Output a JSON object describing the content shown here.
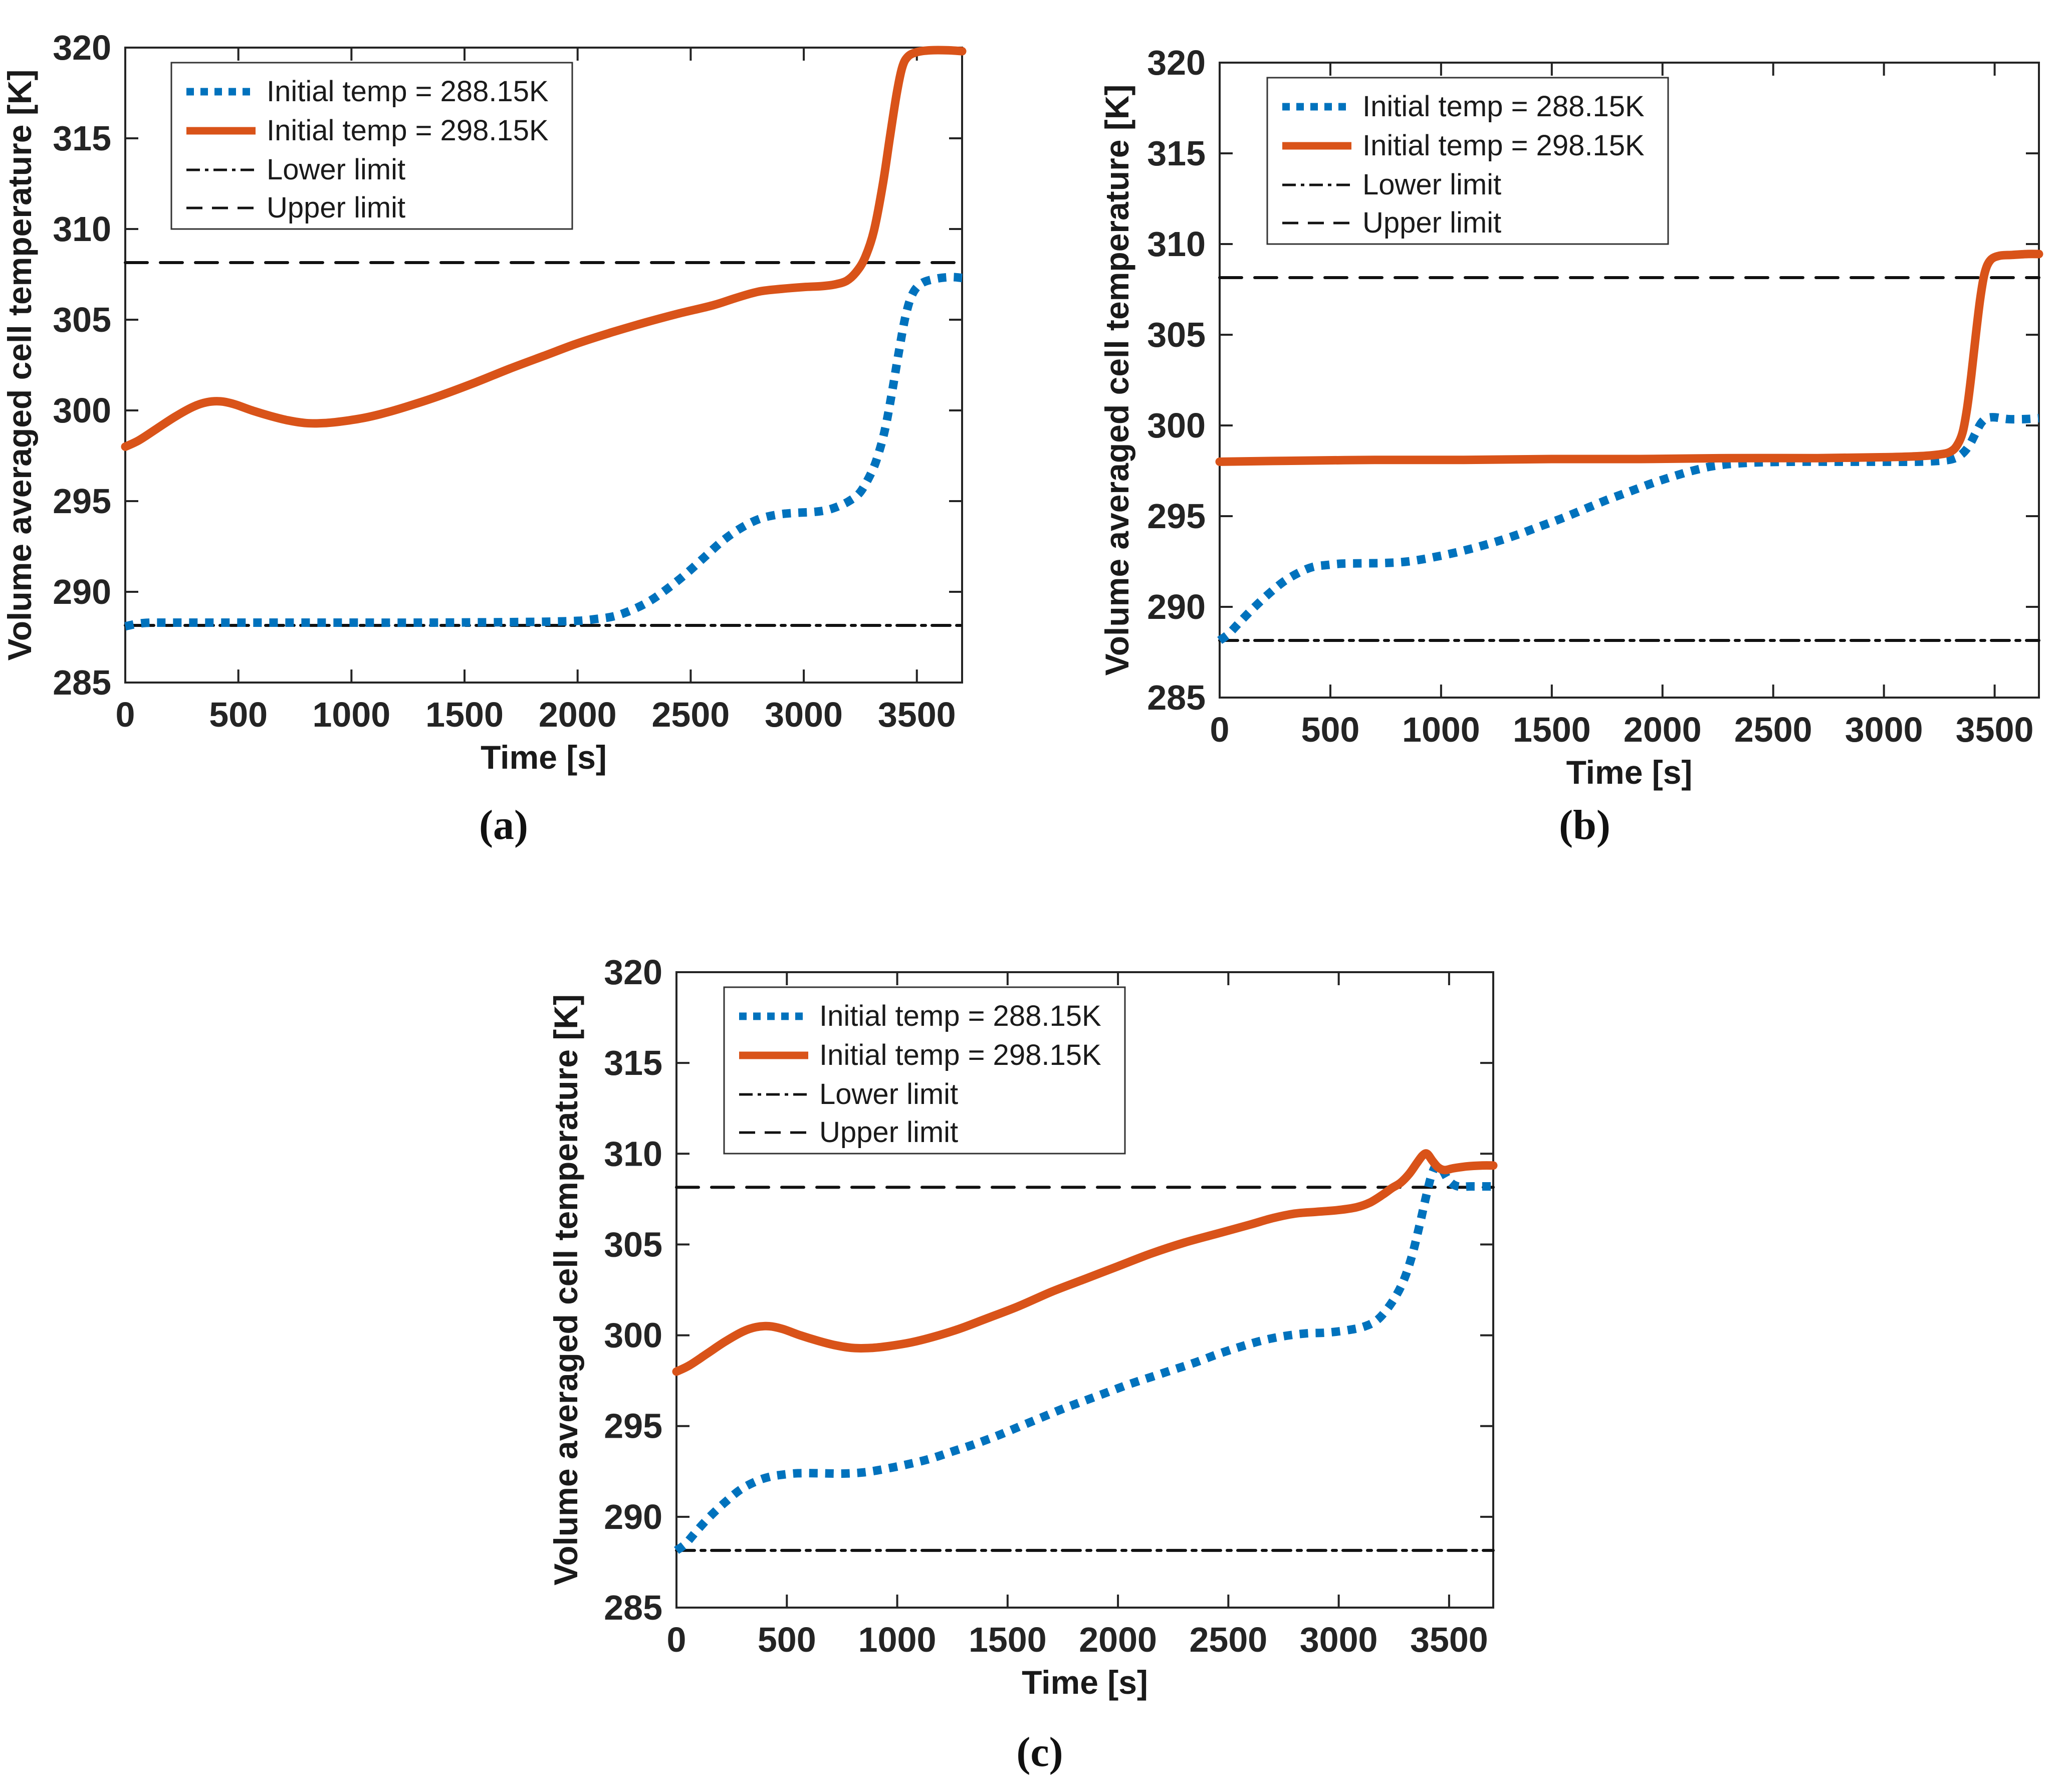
{
  "page": {
    "background": "#ffffff"
  },
  "figure": {
    "subplot_labels": [
      "(a)",
      "(b)",
      "(c)"
    ],
    "accent_colors": {
      "blue": "#0072BD",
      "orange": "#D95319",
      "black": "#111111"
    }
  },
  "chart_data": [
    {
      "type": "line",
      "title": "",
      "xlabel": "Time [s]",
      "ylabel": "Volume averaged cell temperature [K]",
      "xlim": [
        0,
        3700
      ],
      "ylim": [
        285,
        320
      ],
      "xticks": [
        0,
        500,
        1000,
        1500,
        2000,
        2500,
        3000,
        3500
      ],
      "yticks": [
        285,
        290,
        295,
        300,
        305,
        310,
        315,
        320
      ],
      "grid": false,
      "legend_position": "upper left",
      "series": [
        {
          "name": "Initial temp = 288.15K",
          "color": "#0072BD",
          "style": "dotted",
          "x": [
            0,
            80,
            200,
            400,
            700,
            1000,
            1300,
            1600,
            1850,
            2000,
            2080,
            2160,
            2240,
            2320,
            2400,
            2480,
            2560,
            2640,
            2720,
            2800,
            2880,
            2960,
            3040,
            3100,
            3150,
            3200,
            3250,
            3300,
            3330,
            3360,
            3390,
            3420,
            3450,
            3480,
            3520,
            3580,
            3650,
            3700
          ],
          "y": [
            288.1,
            288.28,
            288.3,
            288.3,
            288.3,
            288.3,
            288.3,
            288.32,
            288.35,
            288.4,
            288.5,
            288.65,
            289.0,
            289.5,
            290.2,
            291.0,
            291.9,
            292.8,
            293.5,
            294.0,
            294.25,
            294.35,
            294.4,
            294.5,
            294.7,
            295.0,
            295.5,
            296.6,
            297.6,
            299.0,
            301.0,
            303.2,
            305.2,
            306.4,
            307.0,
            307.25,
            307.35,
            307.3
          ]
        },
        {
          "name": "Initial temp = 298.15K",
          "color": "#D95319",
          "style": "solid",
          "x": [
            0,
            60,
            140,
            220,
            300,
            360,
            420,
            480,
            560,
            640,
            720,
            800,
            880,
            960,
            1060,
            1160,
            1280,
            1400,
            1550,
            1700,
            1850,
            2000,
            2150,
            2300,
            2450,
            2600,
            2700,
            2800,
            2900,
            3000,
            3080,
            3140,
            3190,
            3230,
            3270,
            3310,
            3350,
            3380,
            3410,
            3435,
            3460,
            3500,
            3560,
            3640,
            3700
          ],
          "y": [
            298.0,
            298.35,
            299.0,
            299.65,
            300.2,
            300.45,
            300.5,
            300.35,
            300.0,
            299.7,
            299.45,
            299.3,
            299.3,
            299.4,
            299.6,
            299.9,
            300.35,
            300.85,
            301.55,
            302.3,
            303.0,
            303.7,
            304.3,
            304.85,
            305.35,
            305.8,
            306.2,
            306.55,
            306.7,
            306.8,
            306.85,
            306.95,
            307.15,
            307.6,
            308.4,
            309.9,
            312.5,
            315.0,
            317.4,
            318.9,
            319.5,
            319.75,
            319.85,
            319.85,
            319.8
          ]
        },
        {
          "name": "Lower limit",
          "color": "#111111",
          "style": "dashdot",
          "x": [
            0,
            3700
          ],
          "y": [
            288.15,
            288.15
          ]
        },
        {
          "name": "Upper limit",
          "color": "#111111",
          "style": "dashed",
          "x": [
            0,
            3700
          ],
          "y": [
            308.15,
            308.15
          ]
        }
      ]
    },
    {
      "type": "line",
      "title": "",
      "xlabel": "Time [s]",
      "ylabel": "Volume averaged cell temperature [K]",
      "xlim": [
        0,
        3700
      ],
      "ylim": [
        285,
        320
      ],
      "xticks": [
        0,
        500,
        1000,
        1500,
        2000,
        2500,
        3000,
        3500
      ],
      "yticks": [
        285,
        290,
        295,
        300,
        305,
        310,
        315,
        320
      ],
      "grid": false,
      "legend_position": "upper left",
      "series": [
        {
          "name": "Initial temp = 288.15K",
          "color": "#0072BD",
          "style": "dotted",
          "x": [
            0,
            40,
            90,
            150,
            220,
            290,
            360,
            420,
            480,
            550,
            650,
            750,
            850,
            950,
            1050,
            1150,
            1250,
            1350,
            1450,
            1550,
            1650,
            1750,
            1850,
            1950,
            2050,
            2150,
            2250,
            2400,
            2600,
            2800,
            3000,
            3150,
            3250,
            3310,
            3350,
            3385,
            3415,
            3440,
            3465,
            3500,
            3560,
            3640,
            3700
          ],
          "y": [
            288.15,
            288.5,
            289.15,
            289.9,
            290.7,
            291.4,
            291.9,
            292.2,
            292.3,
            292.38,
            292.4,
            292.42,
            292.5,
            292.7,
            292.95,
            293.25,
            293.6,
            294.0,
            294.45,
            294.9,
            295.4,
            295.9,
            296.35,
            296.8,
            297.2,
            297.55,
            297.8,
            297.95,
            298.0,
            298.0,
            298.0,
            298.0,
            298.05,
            298.15,
            298.4,
            298.9,
            299.6,
            300.15,
            300.4,
            300.45,
            300.35,
            300.35,
            300.4
          ]
        },
        {
          "name": "Initial temp = 298.15K",
          "color": "#D95319",
          "style": "solid",
          "x": [
            0,
            300,
            700,
            1100,
            1500,
            1900,
            2300,
            2700,
            3000,
            3150,
            3250,
            3300,
            3330,
            3355,
            3375,
            3395,
            3415,
            3435,
            3455,
            3480,
            3520,
            3580,
            3650,
            3700
          ],
          "y": [
            298.0,
            298.05,
            298.1,
            298.1,
            298.15,
            298.15,
            298.2,
            298.2,
            298.25,
            298.3,
            298.4,
            298.55,
            298.9,
            299.6,
            300.9,
            302.8,
            305.0,
            307.0,
            308.4,
            309.1,
            309.35,
            309.4,
            309.45,
            309.45
          ]
        },
        {
          "name": "Lower limit",
          "color": "#111111",
          "style": "dashdot",
          "x": [
            0,
            3700
          ],
          "y": [
            288.15,
            288.15
          ]
        },
        {
          "name": "Upper limit",
          "color": "#111111",
          "style": "dashed",
          "x": [
            0,
            3700
          ],
          "y": [
            308.15,
            308.15
          ]
        }
      ]
    },
    {
      "type": "line",
      "title": "",
      "xlabel": "Time [s]",
      "ylabel": "Volume averaged cell temperature [K]",
      "xlim": [
        0,
        3700
      ],
      "ylim": [
        285,
        320
      ],
      "xticks": [
        0,
        500,
        1000,
        1500,
        2000,
        2500,
        3000,
        3500
      ],
      "yticks": [
        285,
        290,
        295,
        300,
        305,
        310,
        315,
        320
      ],
      "grid": false,
      "legend_position": "upper left",
      "series": [
        {
          "name": "Initial temp = 288.15K",
          "color": "#0072BD",
          "style": "dotted",
          "x": [
            0,
            40,
            90,
            150,
            220,
            290,
            360,
            420,
            480,
            550,
            650,
            750,
            850,
            950,
            1050,
            1150,
            1250,
            1350,
            1450,
            1550,
            1650,
            1750,
            1850,
            1950,
            2050,
            2150,
            2250,
            2350,
            2450,
            2550,
            2650,
            2750,
            2850,
            2950,
            3050,
            3120,
            3180,
            3240,
            3290,
            3330,
            3365,
            3395,
            3420,
            3445,
            3470,
            3500,
            3540,
            3600,
            3700
          ],
          "y": [
            288.15,
            288.5,
            289.2,
            290.0,
            290.8,
            291.5,
            291.95,
            292.2,
            292.32,
            292.4,
            292.4,
            292.38,
            292.45,
            292.65,
            292.9,
            293.2,
            293.6,
            294.0,
            294.45,
            294.95,
            295.45,
            295.95,
            296.4,
            296.85,
            297.3,
            297.7,
            298.1,
            298.5,
            298.95,
            299.35,
            299.7,
            299.95,
            300.1,
            300.15,
            300.3,
            300.5,
            300.9,
            301.8,
            302.9,
            304.3,
            306.0,
            307.6,
            308.8,
            309.4,
            309.1,
            308.5,
            308.2,
            308.2,
            308.2
          ]
        },
        {
          "name": "Initial temp = 298.15K",
          "color": "#D95319",
          "style": "solid",
          "x": [
            0,
            60,
            140,
            220,
            300,
            360,
            420,
            480,
            560,
            640,
            720,
            800,
            880,
            960,
            1060,
            1160,
            1280,
            1400,
            1550,
            1700,
            1850,
            2000,
            2150,
            2300,
            2450,
            2600,
            2700,
            2800,
            2900,
            3000,
            3080,
            3140,
            3200,
            3240,
            3280,
            3320,
            3355,
            3380,
            3400,
            3425,
            3450,
            3480,
            3520,
            3580,
            3650,
            3700
          ],
          "y": [
            298.0,
            298.35,
            299.0,
            299.65,
            300.2,
            300.45,
            300.5,
            300.35,
            300.0,
            299.7,
            299.45,
            299.3,
            299.3,
            299.4,
            299.6,
            299.9,
            300.35,
            300.9,
            301.6,
            302.4,
            303.1,
            303.8,
            304.5,
            305.1,
            305.6,
            306.1,
            306.45,
            306.7,
            306.8,
            306.9,
            307.05,
            307.3,
            307.75,
            308.1,
            308.4,
            308.9,
            309.5,
            309.9,
            310.0,
            309.6,
            309.25,
            309.1,
            309.2,
            309.3,
            309.35,
            309.35
          ]
        },
        {
          "name": "Lower limit",
          "color": "#111111",
          "style": "dashdot",
          "x": [
            0,
            3700
          ],
          "y": [
            288.15,
            288.15
          ]
        },
        {
          "name": "Upper limit",
          "color": "#111111",
          "style": "dashed",
          "x": [
            0,
            3700
          ],
          "y": [
            308.15,
            308.15
          ]
        }
      ]
    }
  ]
}
